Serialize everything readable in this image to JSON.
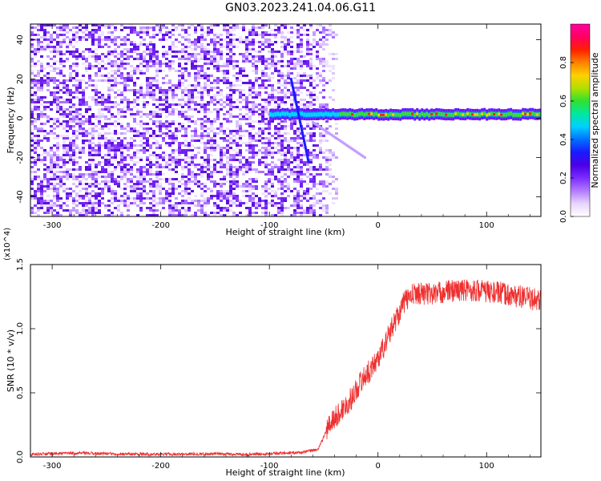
{
  "title": "GN03.2023.241.04.06.G11",
  "chart_data": [
    {
      "type": "heatmap",
      "xlabel": "Height of straight line (km)",
      "ylabel": "Frequency (Hz)",
      "xlim": [
        -320,
        150
      ],
      "ylim": [
        -50,
        48
      ],
      "xticks": [
        -300,
        -200,
        -100,
        0,
        100
      ],
      "yticks": [
        -40,
        -20,
        0,
        20,
        40
      ],
      "colorbar": {
        "label": "Normalized spectral amplitude",
        "range": [
          0,
          1
        ],
        "ticks": [
          "0.0",
          "0.2",
          "0.4",
          "0.6",
          "0.8"
        ],
        "colors": [
          "#ffffff",
          "#e8d4ff",
          "#b27aff",
          "#7b2cff",
          "#4b00e6",
          "#1a1aff",
          "#0070ff",
          "#00d0ff",
          "#00e8a0",
          "#30e030",
          "#b0e000",
          "#ffd000",
          "#ff8000",
          "#ff2000",
          "#ff0060",
          "#ff00a0"
        ]
      },
      "features": {
        "noise_region_x": [
          -320,
          -60
        ],
        "carrier_line": {
          "x_start": -100,
          "x_end": 150,
          "freq_hz": 2
        },
        "sloped_trace_1": {
          "x": [
            -80,
            -64
          ],
          "freq_hz": [
            20,
            -22
          ]
        },
        "sloped_trace_2": {
          "x": [
            -60,
            -12
          ],
          "freq_hz": [
            -2,
            -20
          ]
        }
      }
    },
    {
      "type": "line",
      "xlabel": "Height of straight line (km)",
      "ylabel": "SNR (10 * v/v)",
      "multiplier": "(x10^4)",
      "xlim": [
        -320,
        150
      ],
      "ylim": [
        0,
        1.5
      ],
      "xticks": [
        -300,
        -200,
        -100,
        0,
        100
      ],
      "yticks": [
        "0.0",
        "0.5",
        "1.0",
        "1.5"
      ],
      "color": "#ee3030",
      "series": [
        {
          "x": [
            -320,
            -280,
            -240,
            -200,
            -160,
            -120,
            -90,
            -70,
            -55,
            -45,
            -35,
            -25,
            -15,
            -5,
            5,
            15,
            25,
            35,
            50,
            70,
            90,
            110,
            130,
            150
          ],
          "values": [
            0.02,
            0.03,
            0.025,
            0.02,
            0.025,
            0.02,
            0.03,
            0.035,
            0.06,
            0.25,
            0.35,
            0.45,
            0.6,
            0.7,
            0.85,
            1.05,
            1.22,
            1.28,
            1.27,
            1.3,
            1.3,
            1.28,
            1.25,
            1.22
          ]
        }
      ]
    }
  ]
}
